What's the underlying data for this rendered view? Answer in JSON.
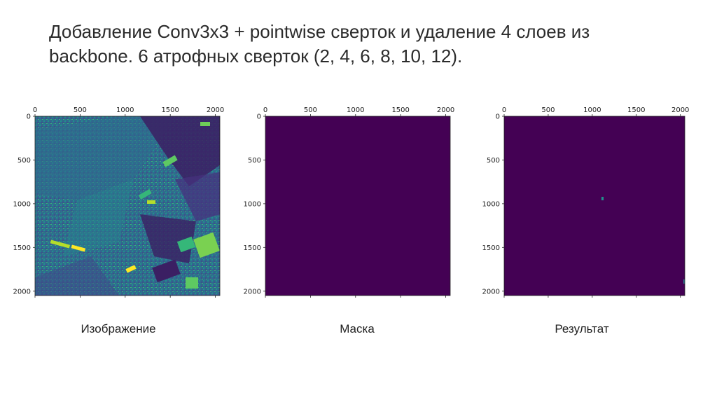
{
  "slide": {
    "title_line1": "Добавление Conv3x3 + pointwise сверток и удаление 4 слоев из",
    "title_line2": "backbone. 6 атрофных сверток (2, 4, 6, 8, 10, 12)."
  },
  "colors": {
    "viridis_dark": "#440154",
    "viridis_blue": "#31688e",
    "viridis_teal": "#21918c",
    "viridis_green": "#5ec962",
    "viridis_yellow": "#fde725"
  },
  "panels": [
    {
      "id": "image",
      "caption": "Изображение",
      "x_ticks": [
        "0",
        "500",
        "1000",
        "1500",
        "2000"
      ],
      "y_ticks": [
        "0",
        "500",
        "1000",
        "1500",
        "2000"
      ]
    },
    {
      "id": "mask",
      "caption": "Маска",
      "x_ticks": [
        "0",
        "500",
        "1000",
        "1500",
        "2000"
      ],
      "y_ticks": [
        "0",
        "500",
        "1000",
        "1500",
        "2000"
      ]
    },
    {
      "id": "result",
      "caption": "Результат",
      "x_ticks": [
        "0",
        "500",
        "1000",
        "1500",
        "2000"
      ],
      "y_ticks": [
        "0",
        "500",
        "1000",
        "1500",
        "2000"
      ]
    }
  ]
}
